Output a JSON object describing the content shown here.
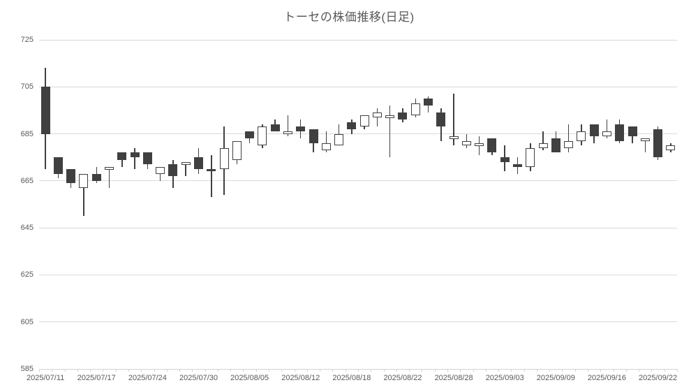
{
  "title": "トーセの株価推移(日足)",
  "chart_data": {
    "type": "candlestick",
    "title": "トーセの株価推移(日足)",
    "grid": true,
    "colors": {
      "up_fill": "#ffffff",
      "down_fill": "#404040",
      "outline": "#404040",
      "gridline": "#d9d9d9",
      "axis_line": "#d3d3d3",
      "text": "#595959"
    },
    "y_axis": {
      "min": 585,
      "max": 725,
      "step": 20,
      "tick_labels": [
        "725",
        "705",
        "685",
        "665",
        "645",
        "625",
        "605",
        "585"
      ]
    },
    "x_axis": {
      "tick_label_interval": 4,
      "tick_labels": [
        "2025/07/11",
        "2025/07/17",
        "2025/07/24",
        "2025/07/30",
        "2025/08/05",
        "2025/08/12",
        "2025/08/18",
        "2025/08/22",
        "2025/08/28",
        "2025/09/03",
        "2025/09/09",
        "2025/09/16",
        "2025/09/22"
      ]
    },
    "series": [
      {
        "date": "2025/07/11",
        "open": 705,
        "high": 713,
        "low": 670,
        "close": 685
      },
      {
        "date": "2025/07/14",
        "open": 675,
        "high": 675,
        "low": 666,
        "close": 668
      },
      {
        "date": "2025/07/15",
        "open": 670,
        "high": 670,
        "low": 662,
        "close": 664
      },
      {
        "date": "2025/07/16",
        "open": 662,
        "high": 668,
        "low": 650,
        "close": 668
      },
      {
        "date": "2025/07/17",
        "open": 668,
        "high": 671,
        "low": 664,
        "close": 665
      },
      {
        "date": "2025/07/18",
        "open": 670,
        "high": 671,
        "low": 662,
        "close": 671
      },
      {
        "date": "2025/07/22",
        "open": 677,
        "high": 677,
        "low": 671,
        "close": 674
      },
      {
        "date": "2025/07/23",
        "open": 677,
        "high": 679,
        "low": 670,
        "close": 675
      },
      {
        "date": "2025/07/24",
        "open": 677,
        "high": 677,
        "low": 670,
        "close": 672
      },
      {
        "date": "2025/07/25",
        "open": 668,
        "high": 671,
        "low": 665,
        "close": 671
      },
      {
        "date": "2025/07/28",
        "open": 672,
        "high": 674,
        "low": 662,
        "close": 667
      },
      {
        "date": "2025/07/29",
        "open": 672,
        "high": 673,
        "low": 667,
        "close": 673
      },
      {
        "date": "2025/07/30",
        "open": 675,
        "high": 679,
        "low": 668,
        "close": 670
      },
      {
        "date": "2025/07/31",
        "open": 670,
        "high": 676,
        "low": 658,
        "close": 669
      },
      {
        "date": "2025/08/01",
        "open": 670,
        "high": 688,
        "low": 659,
        "close": 679
      },
      {
        "date": "2025/08/04",
        "open": 674,
        "high": 682,
        "low": 672,
        "close": 682
      },
      {
        "date": "2025/08/05",
        "open": 686,
        "high": 686,
        "low": 681,
        "close": 683
      },
      {
        "date": "2025/08/06",
        "open": 680,
        "high": 689,
        "low": 679,
        "close": 688
      },
      {
        "date": "2025/08/07",
        "open": 689,
        "high": 691,
        "low": 686,
        "close": 686
      },
      {
        "date": "2025/08/08",
        "open": 686,
        "high": 693,
        "low": 684,
        "close": 686
      },
      {
        "date": "2025/08/12",
        "open": 688,
        "high": 691,
        "low": 683,
        "close": 686
      },
      {
        "date": "2025/08/13",
        "open": 687,
        "high": 687,
        "low": 677,
        "close": 681
      },
      {
        "date": "2025/08/14",
        "open": 678,
        "high": 686,
        "low": 677,
        "close": 681
      },
      {
        "date": "2025/08/15",
        "open": 680,
        "high": 689,
        "low": 680,
        "close": 685
      },
      {
        "date": "2025/08/18",
        "open": 690,
        "high": 691,
        "low": 685,
        "close": 687
      },
      {
        "date": "2025/08/19",
        "open": 688,
        "high": 693,
        "low": 687,
        "close": 693
      },
      {
        "date": "2025/08/20",
        "open": 692,
        "high": 696,
        "low": 688,
        "close": 694
      },
      {
        "date": "2025/08/21",
        "open": 693,
        "high": 697,
        "low": 675,
        "close": 693
      },
      {
        "date": "2025/08/22",
        "open": 694,
        "high": 696,
        "low": 690,
        "close": 691
      },
      {
        "date": "2025/08/25",
        "open": 693,
        "high": 700,
        "low": 692,
        "close": 698
      },
      {
        "date": "2025/08/26",
        "open": 700,
        "high": 701,
        "low": 694,
        "close": 697
      },
      {
        "date": "2025/08/27",
        "open": 694,
        "high": 696,
        "low": 682,
        "close": 688
      },
      {
        "date": "2025/08/28",
        "open": 683,
        "high": 702,
        "low": 680,
        "close": 684
      },
      {
        "date": "2025/08/29",
        "open": 680,
        "high": 685,
        "low": 679,
        "close": 682
      },
      {
        "date": "2025/09/01",
        "open": 680,
        "high": 684,
        "low": 676,
        "close": 681
      },
      {
        "date": "2025/09/02",
        "open": 683,
        "high": 683,
        "low": 676,
        "close": 677
      },
      {
        "date": "2025/09/03",
        "open": 675,
        "high": 680,
        "low": 669,
        "close": 673
      },
      {
        "date": "2025/09/04",
        "open": 672,
        "high": 675,
        "low": 668,
        "close": 671
      },
      {
        "date": "2025/09/05",
        "open": 671,
        "high": 681,
        "low": 669,
        "close": 679
      },
      {
        "date": "2025/09/08",
        "open": 679,
        "high": 686,
        "low": 678,
        "close": 681
      },
      {
        "date": "2025/09/09",
        "open": 683,
        "high": 686,
        "low": 677,
        "close": 677
      },
      {
        "date": "2025/09/10",
        "open": 679,
        "high": 689,
        "low": 677,
        "close": 682
      },
      {
        "date": "2025/09/11",
        "open": 682,
        "high": 689,
        "low": 680,
        "close": 686
      },
      {
        "date": "2025/09/12",
        "open": 689,
        "high": 689,
        "low": 681,
        "close": 684
      },
      {
        "date": "2025/09/16",
        "open": 684,
        "high": 691,
        "low": 683,
        "close": 686
      },
      {
        "date": "2025/09/17",
        "open": 689,
        "high": 691,
        "low": 681,
        "close": 682
      },
      {
        "date": "2025/09/18",
        "open": 688,
        "high": 688,
        "low": 681,
        "close": 684
      },
      {
        "date": "2025/09/19",
        "open": 683,
        "high": 683,
        "low": 677,
        "close": 683
      },
      {
        "date": "2025/09/22",
        "open": 687,
        "high": 688,
        "low": 674,
        "close": 675
      },
      {
        "date": "2025/09/24",
        "open": 678,
        "high": 681,
        "low": 677,
        "close": 680
      }
    ]
  }
}
